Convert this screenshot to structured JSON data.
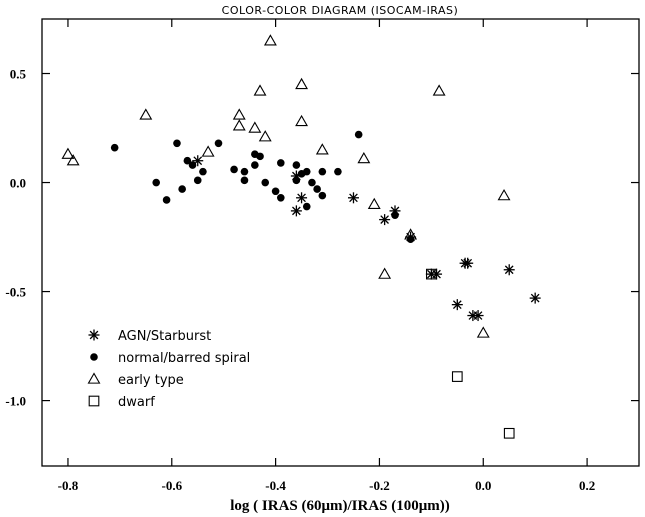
{
  "chart_data": {
    "type": "scatter",
    "title": "COLOR-COLOR DIAGRAM (ISOCAM-IRAS)",
    "xlabel": "log ( IRAS (60μm)/IRAS (100μm))",
    "ylabel": "",
    "xlim": [
      -0.85,
      0.3
    ],
    "ylim": [
      -1.3,
      0.75
    ],
    "xticks": [
      -0.8,
      -0.6,
      -0.4,
      -0.2,
      0.0,
      0.2
    ],
    "xtick_labels": [
      "-0.8",
      "-0.6",
      "-0.4",
      "-0.2",
      "0.0",
      "0.2"
    ],
    "yticks": [
      0.5,
      0.0,
      -0.5,
      -1.0
    ],
    "ytick_labels": [
      "0.5",
      "0.0",
      "-0.5",
      "-1.0"
    ],
    "grid": false,
    "legend_position": "bottom-left",
    "series": [
      {
        "name": "AGN/Starburst",
        "marker": "asterisk",
        "points": [
          [
            -0.55,
            0.1
          ],
          [
            -0.36,
            0.03
          ],
          [
            -0.36,
            -0.13
          ],
          [
            -0.35,
            -0.07
          ],
          [
            -0.25,
            -0.07
          ],
          [
            -0.19,
            -0.17
          ],
          [
            -0.17,
            -0.13
          ],
          [
            -0.14,
            -0.25
          ],
          [
            -0.1,
            -0.42
          ],
          [
            -0.09,
            -0.42
          ],
          [
            -0.035,
            -0.37
          ],
          [
            -0.03,
            -0.37
          ],
          [
            -0.05,
            -0.56
          ],
          [
            -0.02,
            -0.61
          ],
          [
            -0.01,
            -0.61
          ],
          [
            0.05,
            -0.4
          ],
          [
            0.1,
            -0.53
          ]
        ]
      },
      {
        "name": "normal/barred spiral",
        "marker": "filled-circle",
        "points": [
          [
            -0.71,
            0.16
          ],
          [
            -0.59,
            0.18
          ],
          [
            -0.51,
            0.18
          ],
          [
            -0.56,
            0.08
          ],
          [
            -0.63,
            0.0
          ],
          [
            -0.61,
            -0.08
          ],
          [
            -0.58,
            -0.03
          ],
          [
            -0.57,
            0.1
          ],
          [
            -0.55,
            0.01
          ],
          [
            -0.54,
            0.05
          ],
          [
            -0.48,
            0.06
          ],
          [
            -0.46,
            0.05
          ],
          [
            -0.46,
            0.01
          ],
          [
            -0.44,
            0.13
          ],
          [
            -0.44,
            0.08
          ],
          [
            -0.43,
            0.12
          ],
          [
            -0.42,
            0.0
          ],
          [
            -0.4,
            -0.04
          ],
          [
            -0.39,
            0.09
          ],
          [
            -0.39,
            -0.07
          ],
          [
            -0.36,
            0.08
          ],
          [
            -0.36,
            0.01
          ],
          [
            -0.35,
            0.04
          ],
          [
            -0.34,
            0.05
          ],
          [
            -0.34,
            -0.11
          ],
          [
            -0.33,
            0.0
          ],
          [
            -0.32,
            -0.03
          ],
          [
            -0.31,
            -0.06
          ],
          [
            -0.31,
            0.05
          ],
          [
            -0.28,
            0.05
          ],
          [
            -0.24,
            0.22
          ],
          [
            -0.17,
            -0.15
          ],
          [
            -0.14,
            -0.26
          ]
        ]
      },
      {
        "name": "early type",
        "marker": "open-triangle",
        "points": [
          [
            -0.8,
            0.13
          ],
          [
            -0.79,
            0.1
          ],
          [
            -0.65,
            0.31
          ],
          [
            -0.53,
            0.14
          ],
          [
            -0.47,
            0.31
          ],
          [
            -0.47,
            0.26
          ],
          [
            -0.44,
            0.25
          ],
          [
            -0.43,
            0.42
          ],
          [
            -0.42,
            0.21
          ],
          [
            -0.41,
            0.65
          ],
          [
            -0.35,
            0.45
          ],
          [
            -0.35,
            0.28
          ],
          [
            -0.31,
            0.15
          ],
          [
            -0.23,
            0.11
          ],
          [
            -0.21,
            -0.1
          ],
          [
            -0.19,
            -0.42
          ],
          [
            -0.14,
            -0.24
          ],
          [
            -0.085,
            0.42
          ],
          [
            0.04,
            -0.06
          ],
          [
            0.0,
            -0.69
          ]
        ]
      },
      {
        "name": "dwarf",
        "marker": "open-square",
        "points": [
          [
            -0.1,
            -0.42
          ],
          [
            -0.05,
            -0.89
          ],
          [
            0.05,
            -1.15
          ]
        ]
      }
    ]
  }
}
